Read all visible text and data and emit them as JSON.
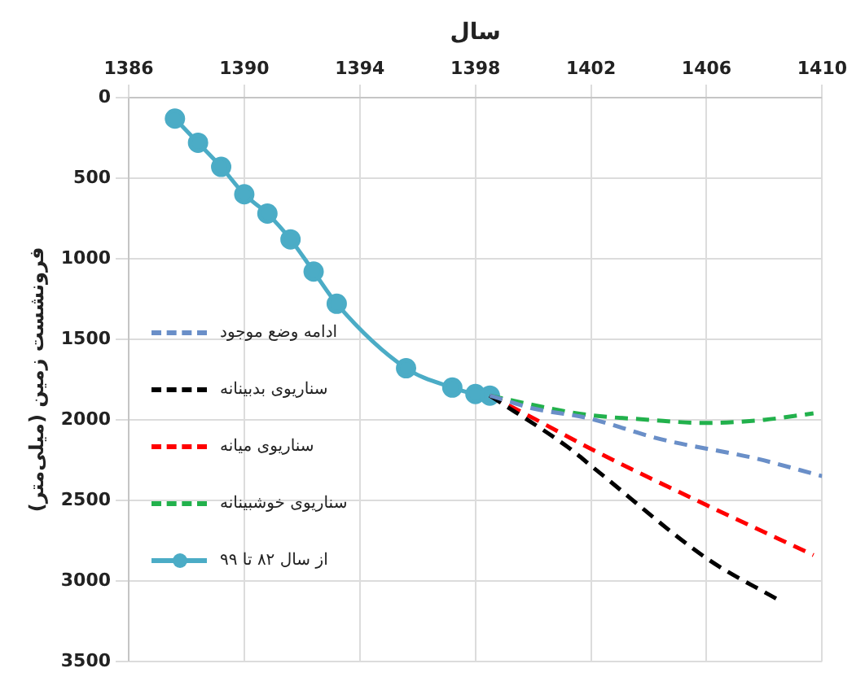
{
  "chart_data": {
    "type": "line",
    "xlabel": "سال",
    "ylabel": "فرونشست زمین (میلی‌متر)",
    "xlim": [
      1386,
      1410
    ],
    "xticks": [
      1386,
      1390,
      1394,
      1398,
      1402,
      1406,
      1410
    ],
    "ylim": [
      3500,
      0
    ],
    "yticks": [
      0,
      500,
      1000,
      1500,
      2000,
      2500,
      3000,
      3500
    ],
    "grid": true,
    "legend": "left",
    "series": [
      {
        "name": "ادامه وضع موجود",
        "color": "#6a8fc8",
        "line_style": "dashed",
        "marker": "none",
        "x": [
          1398.5,
          1400,
          1401.9,
          1404.4,
          1407.7,
          1410
        ],
        "values": [
          1850,
          1930,
          1990,
          2120,
          2240,
          2350
        ]
      },
      {
        "name": "سناریوی بدبینانه",
        "color": "#000000",
        "line_style": "dashed",
        "marker": "none",
        "x": [
          1398.5,
          1401.2,
          1402.1,
          1406,
          1408.5
        ],
        "values": [
          1850,
          2170,
          2300,
          2860,
          3120
        ]
      },
      {
        "name": "سناریوی میانه",
        "color": "#ff0000",
        "line_style": "dashed",
        "marker": "none",
        "x": [
          1398.5,
          1400,
          1402.1,
          1406,
          1409.7
        ],
        "values": [
          1850,
          1990,
          2190,
          2530,
          2840
        ]
      },
      {
        "name": "سناریوی خوشبینانه",
        "color": "#22b14c",
        "line_style": "dashed",
        "marker": "none",
        "x": [
          1398.5,
          1400.6,
          1401.9,
          1404,
          1405.9,
          1408,
          1409.7
        ],
        "values": [
          1850,
          1930,
          1970,
          2000,
          2020,
          2000,
          1960
        ]
      },
      {
        "name": "از سال ۸۲ تا ۹۹",
        "color": "#4bacc6",
        "line_style": "solid",
        "marker": "circle",
        "x": [
          1387.6,
          1388.4,
          1389.2,
          1390,
          1390.8,
          1391.6,
          1392.4,
          1393.2,
          1395.6,
          1397.2,
          1398,
          1398.5
        ],
        "values": [
          130,
          280,
          430,
          600,
          720,
          880,
          1080,
          1280,
          1680,
          1800,
          1840,
          1850
        ]
      }
    ]
  }
}
